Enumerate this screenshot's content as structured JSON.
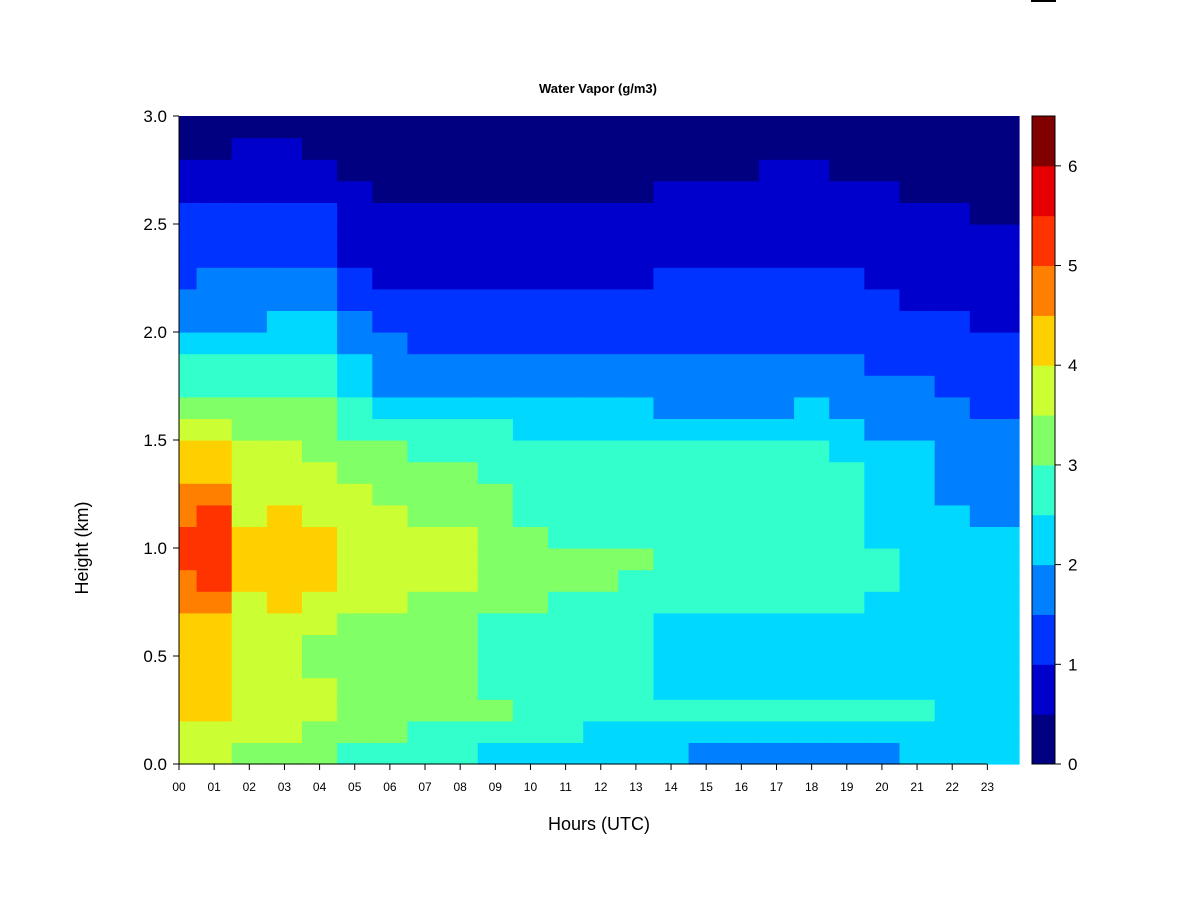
{
  "chart_data": {
    "type": "heatmap",
    "title": "Water Vapor (g/m3)",
    "xlabel": "Hours (UTC)",
    "ylabel": "Height (km)",
    "xlim": [
      0,
      23.9
    ],
    "ylim": [
      0.0,
      3.0
    ],
    "x_ticks": [
      "00",
      "01",
      "02",
      "03",
      "04",
      "05",
      "06",
      "07",
      "08",
      "09",
      "10",
      "11",
      "12",
      "13",
      "14",
      "15",
      "16",
      "17",
      "18",
      "19",
      "20",
      "21",
      "22",
      "23"
    ],
    "y_ticks": [
      "0.0",
      "0.5",
      "1.0",
      "1.5",
      "2.0",
      "2.5",
      "3.0"
    ],
    "colorbar": {
      "levels": [
        0,
        0.5,
        1,
        1.5,
        2,
        2.5,
        3,
        3.5,
        4,
        4.5,
        5,
        5.5,
        6,
        6.5
      ],
      "tick_labels": [
        "0",
        "1",
        "2",
        "3",
        "4",
        "5",
        "6"
      ],
      "colors": [
        "#000080",
        "#0000cd",
        "#0033ff",
        "#0080ff",
        "#00d8ff",
        "#33ffcc",
        "#80ff66",
        "#ccff33",
        "#ffd000",
        "#ff8000",
        "#ff3300",
        "#e60000",
        "#800000"
      ]
    },
    "profile_heights_km": [
      0.05,
      0.15,
      0.25,
      0.35,
      0.45,
      0.55,
      0.65,
      0.75,
      0.85,
      0.95,
      1.05,
      1.15,
      1.25,
      1.35,
      1.45,
      1.55,
      1.65,
      1.75,
      1.85,
      1.95,
      2.05,
      2.15,
      2.25,
      2.35,
      2.45,
      2.55,
      2.65,
      2.75,
      2.85,
      2.95
    ],
    "profiles": [
      {
        "hour": 0.0,
        "values": [
          3.6,
          3.9,
          4.3,
          4.4,
          4.2,
          4.1,
          4.3,
          4.6,
          4.9,
          5.2,
          5.1,
          4.9,
          4.5,
          4.3,
          4.1,
          3.8,
          3.4,
          2.8,
          2.5,
          2.2,
          1.9,
          1.6,
          1.4,
          1.2,
          1.1,
          1.0,
          0.8,
          0.6,
          0.4,
          0.3
        ]
      },
      {
        "hour": 1.0,
        "values": [
          3.5,
          3.9,
          4.4,
          4.4,
          4.2,
          4.2,
          4.4,
          4.7,
          5.1,
          5.4,
          5.3,
          5.0,
          4.6,
          4.4,
          4.2,
          3.9,
          3.4,
          2.8,
          2.5,
          2.2,
          1.9,
          1.7,
          1.5,
          1.3,
          1.2,
          1.0,
          0.8,
          0.6,
          0.4,
          0.3
        ]
      },
      {
        "hour": 2.0,
        "values": [
          3.3,
          3.6,
          3.9,
          3.8,
          3.6,
          3.5,
          3.6,
          3.9,
          4.1,
          4.2,
          4.1,
          3.9,
          3.8,
          3.7,
          3.6,
          3.4,
          3.1,
          2.8,
          2.5,
          2.2,
          1.9,
          1.7,
          1.5,
          1.3,
          1.2,
          1.1,
          0.9,
          0.7,
          0.5,
          0.3
        ]
      },
      {
        "hour": 3.0,
        "values": [
          3.2,
          3.5,
          3.9,
          3.8,
          3.6,
          3.5,
          3.8,
          4.1,
          4.3,
          4.4,
          4.3,
          4.1,
          3.9,
          3.8,
          3.6,
          3.4,
          3.2,
          2.9,
          2.6,
          2.3,
          2.0,
          1.8,
          1.6,
          1.4,
          1.2,
          1.1,
          0.9,
          0.7,
          0.5,
          0.3
        ]
      },
      {
        "hour": 4.0,
        "values": [
          3.0,
          3.4,
          3.7,
          3.6,
          3.4,
          3.4,
          3.6,
          3.9,
          4.0,
          4.1,
          4.0,
          3.9,
          3.7,
          3.6,
          3.4,
          3.2,
          3.0,
          2.7,
          2.5,
          2.2,
          2.0,
          1.8,
          1.6,
          1.4,
          1.2,
          1.0,
          0.8,
          0.6,
          0.4,
          0.3
        ]
      },
      {
        "hour": 5.0,
        "values": [
          2.8,
          3.1,
          3.4,
          3.3,
          3.2,
          3.2,
          3.4,
          3.7,
          3.8,
          3.9,
          3.8,
          3.7,
          3.5,
          3.3,
          3.1,
          2.9,
          2.6,
          2.3,
          2.0,
          1.8,
          1.6,
          1.3,
          1.1,
          0.9,
          0.7,
          0.6,
          0.5,
          0.4,
          0.3,
          0.2
        ]
      },
      {
        "hour": 6.0,
        "values": [
          2.7,
          3.0,
          3.3,
          3.2,
          3.1,
          3.1,
          3.3,
          3.6,
          3.7,
          3.8,
          3.7,
          3.6,
          3.4,
          3.2,
          3.0,
          2.7,
          2.3,
          1.9,
          1.7,
          1.5,
          1.3,
          1.1,
          0.9,
          0.7,
          0.6,
          0.5,
          0.4,
          0.3,
          0.25,
          0.2
        ]
      },
      {
        "hour": 7.0,
        "values": [
          2.6,
          2.9,
          3.2,
          3.1,
          3.0,
          3.0,
          3.1,
          3.3,
          3.5,
          3.6,
          3.5,
          3.3,
          3.1,
          3.0,
          2.8,
          2.6,
          2.2,
          1.8,
          1.6,
          1.4,
          1.2,
          1.0,
          0.9,
          0.7,
          0.6,
          0.5,
          0.4,
          0.3,
          0.25,
          0.2
        ]
      },
      {
        "hour": 8.0,
        "values": [
          2.6,
          2.9,
          3.2,
          3.1,
          3.0,
          3.0,
          3.1,
          3.3,
          3.5,
          3.6,
          3.5,
          3.3,
          3.1,
          3.0,
          2.8,
          2.6,
          2.2,
          1.8,
          1.6,
          1.4,
          1.2,
          1.0,
          0.9,
          0.7,
          0.6,
          0.5,
          0.4,
          0.3,
          0.25,
          0.2
        ]
      },
      {
        "hour": 9.0,
        "values": [
          2.4,
          2.7,
          3.0,
          2.9,
          2.8,
          2.8,
          2.9,
          3.1,
          3.3,
          3.3,
          3.2,
          3.1,
          3.0,
          2.9,
          2.7,
          2.5,
          2.2,
          1.8,
          1.6,
          1.4,
          1.2,
          1.0,
          0.9,
          0.7,
          0.6,
          0.5,
          0.4,
          0.3,
          0.25,
          0.2
        ]
      },
      {
        "hour": 10.0,
        "values": [
          2.2,
          2.5,
          2.9,
          2.8,
          2.7,
          2.7,
          2.8,
          3.0,
          3.1,
          3.1,
          3.0,
          2.9,
          2.8,
          2.7,
          2.6,
          2.4,
          2.1,
          1.8,
          1.6,
          1.4,
          1.2,
          1.0,
          0.9,
          0.7,
          0.6,
          0.5,
          0.4,
          0.3,
          0.25,
          0.2
        ]
      },
      {
        "hour": 11.0,
        "values": [
          2.2,
          2.5,
          2.8,
          2.7,
          2.6,
          2.6,
          2.7,
          2.9,
          3.0,
          3.0,
          2.9,
          2.9,
          2.8,
          2.7,
          2.6,
          2.4,
          2.1,
          1.8,
          1.6,
          1.4,
          1.2,
          1.0,
          0.9,
          0.7,
          0.6,
          0.5,
          0.4,
          0.3,
          0.25,
          0.2
        ]
      },
      {
        "hour": 12.0,
        "values": [
          2.2,
          2.4,
          2.8,
          2.7,
          2.6,
          2.6,
          2.7,
          2.9,
          3.0,
          3.0,
          2.9,
          2.9,
          2.8,
          2.7,
          2.6,
          2.4,
          2.1,
          1.8,
          1.6,
          1.4,
          1.2,
          1.0,
          0.9,
          0.7,
          0.6,
          0.5,
          0.4,
          0.3,
          0.25,
          0.2
        ]
      },
      {
        "hour": 13.0,
        "values": [
          2.2,
          2.4,
          2.7,
          2.7,
          2.6,
          2.6,
          2.7,
          2.8,
          2.9,
          3.0,
          2.9,
          2.8,
          2.8,
          2.7,
          2.6,
          2.4,
          2.1,
          1.8,
          1.6,
          1.4,
          1.2,
          1.1,
          0.9,
          0.8,
          0.6,
          0.5,
          0.45,
          0.35,
          0.3,
          0.2
        ]
      },
      {
        "hour": 14.0,
        "values": [
          2.2,
          2.3,
          2.6,
          2.4,
          2.3,
          2.3,
          2.4,
          2.5,
          2.7,
          2.8,
          2.8,
          2.8,
          2.7,
          2.6,
          2.5,
          2.3,
          1.9,
          1.6,
          1.5,
          1.3,
          1.2,
          1.1,
          1.0,
          0.8,
          0.7,
          0.6,
          0.5,
          0.4,
          0.3,
          0.2
        ]
      },
      {
        "hour": 15.0,
        "values": [
          1.8,
          2.2,
          2.6,
          2.4,
          2.3,
          2.3,
          2.4,
          2.5,
          2.7,
          2.8,
          2.8,
          2.8,
          2.7,
          2.6,
          2.5,
          2.3,
          1.9,
          1.6,
          1.5,
          1.3,
          1.2,
          1.1,
          1.0,
          0.9,
          0.8,
          0.7,
          0.6,
          0.45,
          0.3,
          0.2
        ]
      },
      {
        "hour": 16.0,
        "values": [
          1.8,
          2.2,
          2.6,
          2.4,
          2.3,
          2.3,
          2.4,
          2.5,
          2.7,
          2.8,
          2.8,
          2.8,
          2.7,
          2.6,
          2.5,
          2.3,
          1.9,
          1.6,
          1.5,
          1.3,
          1.2,
          1.1,
          1.0,
          0.9,
          0.8,
          0.7,
          0.6,
          0.45,
          0.3,
          0.2
        ]
      },
      {
        "hour": 17.0,
        "values": [
          1.8,
          2.2,
          2.6,
          2.4,
          2.3,
          2.3,
          2.4,
          2.5,
          2.7,
          2.8,
          2.8,
          2.8,
          2.7,
          2.6,
          2.5,
          2.3,
          1.9,
          1.6,
          1.5,
          1.3,
          1.2,
          1.1,
          1.0,
          0.9,
          0.8,
          0.7,
          0.6,
          0.5,
          0.3,
          0.2
        ]
      },
      {
        "hour": 18.0,
        "values": [
          1.8,
          2.2,
          2.6,
          2.4,
          2.3,
          2.3,
          2.4,
          2.5,
          2.7,
          2.8,
          2.8,
          2.8,
          2.7,
          2.6,
          2.5,
          2.3,
          2.0,
          1.6,
          1.5,
          1.3,
          1.2,
          1.1,
          1.0,
          0.9,
          0.8,
          0.7,
          0.6,
          0.5,
          0.3,
          0.2
        ]
      },
      {
        "hour": 19.0,
        "values": [
          1.8,
          2.2,
          2.6,
          2.4,
          2.3,
          2.3,
          2.4,
          2.5,
          2.7,
          2.7,
          2.6,
          2.6,
          2.5,
          2.5,
          2.4,
          2.2,
          1.9,
          1.6,
          1.5,
          1.3,
          1.2,
          1.1,
          1.0,
          0.9,
          0.8,
          0.6,
          0.5,
          0.4,
          0.3,
          0.2
        ]
      },
      {
        "hour": 20.0,
        "values": [
          1.8,
          2.2,
          2.6,
          2.4,
          2.3,
          2.3,
          2.4,
          2.4,
          2.5,
          2.5,
          2.4,
          2.4,
          2.3,
          2.2,
          2.1,
          1.8,
          1.6,
          1.5,
          1.3,
          1.2,
          1.1,
          1.0,
          0.9,
          0.8,
          0.7,
          0.6,
          0.5,
          0.4,
          0.3,
          0.2
        ]
      },
      {
        "hour": 21.0,
        "values": [
          2.2,
          2.3,
          2.6,
          2.4,
          2.3,
          2.3,
          2.3,
          2.3,
          2.3,
          2.3,
          2.3,
          2.2,
          2.2,
          2.1,
          2.0,
          1.8,
          1.6,
          1.5,
          1.3,
          1.1,
          1.0,
          0.9,
          0.8,
          0.7,
          0.6,
          0.5,
          0.45,
          0.4,
          0.3,
          0.2
        ]
      },
      {
        "hour": 22.0,
        "values": [
          2.2,
          2.3,
          2.4,
          2.4,
          2.3,
          2.3,
          2.3,
          2.3,
          2.3,
          2.3,
          2.3,
          2.3,
          1.9,
          1.8,
          1.7,
          1.6,
          1.5,
          1.4,
          1.3,
          1.1,
          1.0,
          0.9,
          0.8,
          0.7,
          0.6,
          0.5,
          0.4,
          0.3,
          0.25,
          0.2
        ]
      },
      {
        "hour": 23.0,
        "values": [
          2.2,
          2.3,
          2.4,
          2.4,
          2.3,
          2.3,
          2.3,
          2.3,
          2.3,
          2.3,
          2.1,
          1.9,
          1.8,
          1.7,
          1.6,
          1.5,
          1.4,
          1.3,
          1.2,
          1.0,
          0.9,
          0.8,
          0.7,
          0.6,
          0.5,
          0.45,
          0.4,
          0.3,
          0.25,
          0.2
        ]
      },
      {
        "hour": 23.9,
        "values": [
          2.2,
          2.3,
          2.4,
          2.4,
          2.3,
          2.3,
          2.3,
          2.3,
          2.3,
          2.3,
          2.1,
          1.9,
          1.8,
          1.7,
          1.6,
          1.5,
          1.4,
          1.3,
          1.2,
          1.0,
          0.9,
          0.8,
          0.7,
          0.6,
          0.5,
          0.45,
          0.4,
          0.3,
          0.25,
          0.2
        ]
      }
    ]
  }
}
